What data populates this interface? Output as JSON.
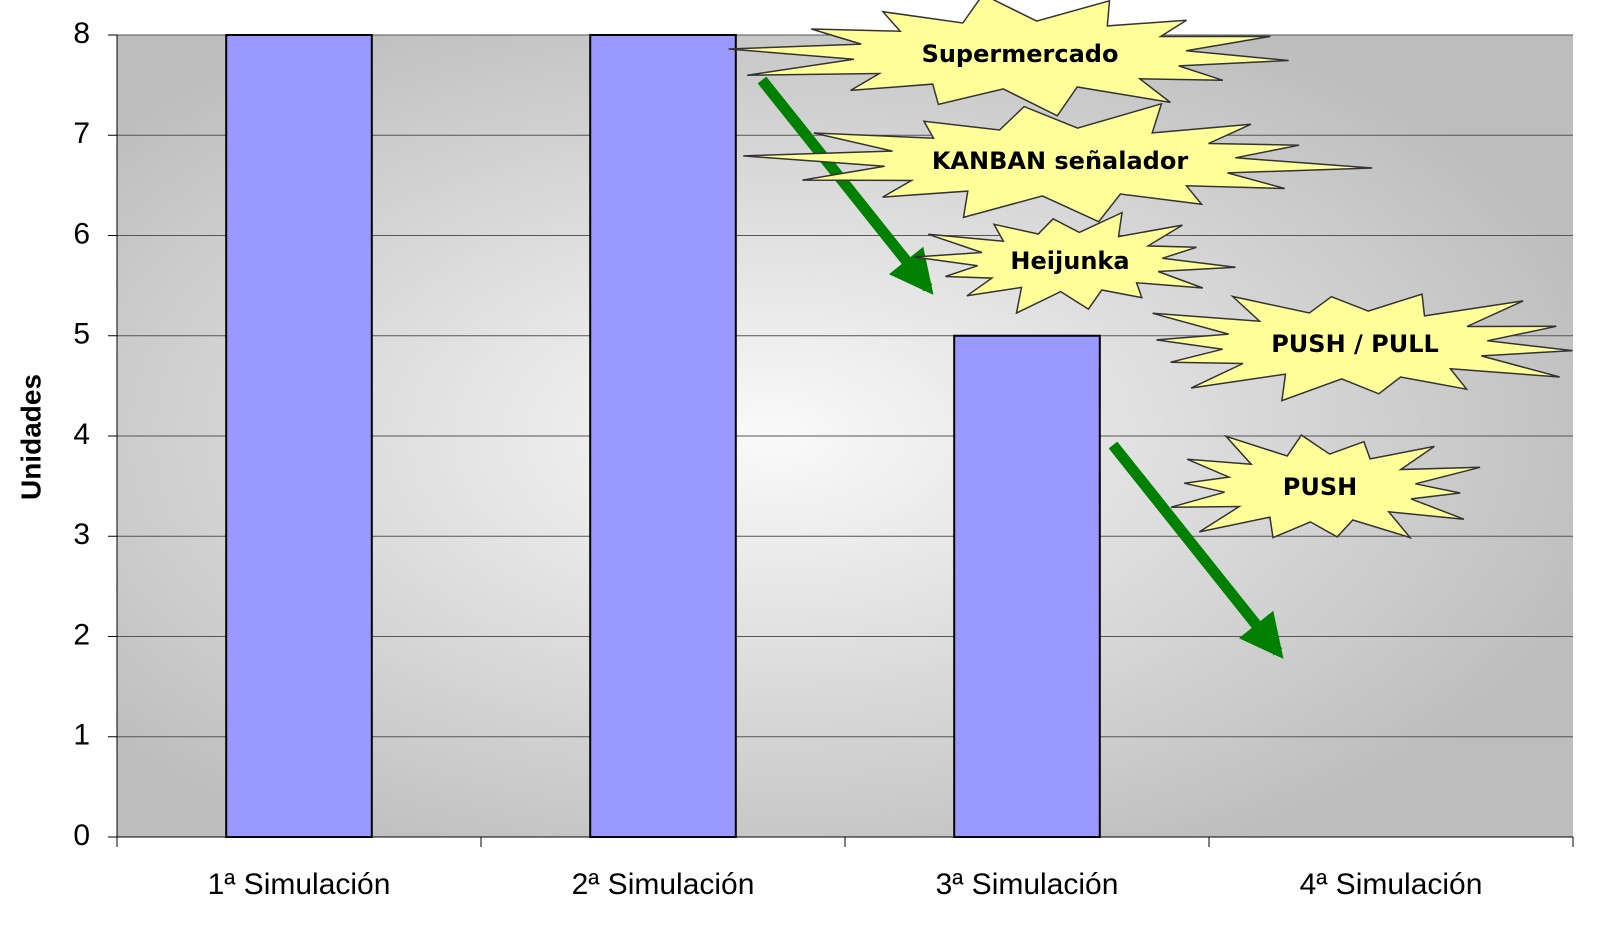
{
  "chart_data": {
    "type": "bar",
    "y_label": "Unidades",
    "categories": [
      "1ª Simulación",
      "2ª Simulación",
      "3ª Simulación",
      "4ª Simulación"
    ],
    "values": [
      8,
      8,
      5,
      null
    ],
    "color": "#9999ff",
    "ylim": [
      0,
      8
    ],
    "yticks": [
      0,
      1,
      2,
      3,
      4,
      5,
      6,
      7,
      8
    ],
    "grid": true,
    "annotations": [
      "Supermercado",
      "KANBAN señalador",
      "Heijunka",
      "PUSH / PULL",
      "PUSH"
    ]
  }
}
